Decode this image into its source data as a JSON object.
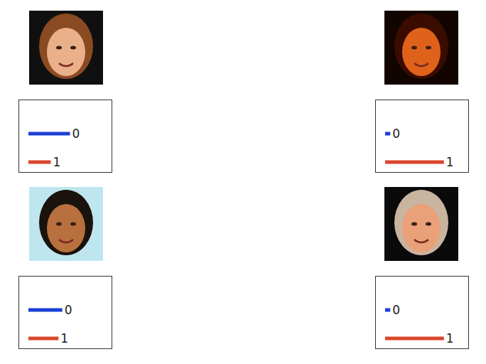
{
  "chart_data": [
    {
      "type": "bar",
      "orientation": "horizontal",
      "categories": [
        "0",
        "1"
      ],
      "values": [
        0.65,
        0.35
      ],
      "colors": [
        "#1a3fd6",
        "#d9472b"
      ],
      "xlim": [
        0,
        1
      ],
      "tick_labels": false
    },
    {
      "type": "bar",
      "orientation": "horizontal",
      "categories": [
        "0",
        "1"
      ],
      "values": [
        0.08,
        0.92
      ],
      "colors": [
        "#1a3fd6",
        "#d9472b"
      ],
      "xlim": [
        0,
        1
      ],
      "tick_labels": false
    },
    {
      "type": "bar",
      "orientation": "horizontal",
      "categories": [
        "0",
        "1"
      ],
      "values": [
        0.53,
        0.47
      ],
      "colors": [
        "#1a3fd6",
        "#d9472b"
      ],
      "xlim": [
        0,
        1
      ],
      "tick_labels": false
    },
    {
      "type": "bar",
      "orientation": "horizontal",
      "categories": [
        "0",
        "1"
      ],
      "values": [
        0.08,
        0.92
      ],
      "colors": [
        "#1a3fd6",
        "#d9472b"
      ],
      "xlim": [
        0,
        1
      ],
      "tick_labels": false
    }
  ]
}
